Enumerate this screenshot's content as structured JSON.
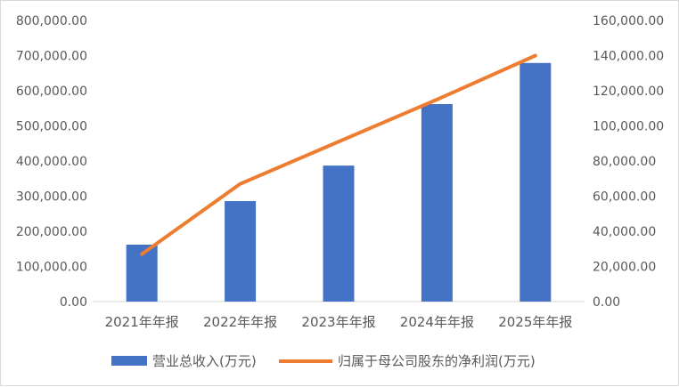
{
  "chart_data": {
    "type": "bar+line",
    "categories": [
      "2021年年报",
      "2022年年报",
      "2023年年报",
      "2024年年报",
      "2025年年报"
    ],
    "series": [
      {
        "name": "营业总收入(万元)",
        "type": "bar",
        "axis": "left",
        "color": "#4472C4",
        "values": [
          162000,
          286000,
          387000,
          562000,
          679000
        ]
      },
      {
        "name": "归属于母公司股东的净利润(万元)",
        "type": "line",
        "axis": "right",
        "color": "#ED7D31",
        "values": [
          27000,
          67000,
          91000,
          115000,
          140000
        ]
      }
    ],
    "y_left": {
      "min": 0,
      "max": 800000,
      "step": 100000,
      "ticks": [
        "0.00",
        "100,000.00",
        "200,000.00",
        "300,000.00",
        "400,000.00",
        "500,000.00",
        "600,000.00",
        "700,000.00",
        "800,000.00"
      ]
    },
    "y_right": {
      "min": 0,
      "max": 160000,
      "step": 20000,
      "ticks": [
        "0.00",
        "20,000.00",
        "40,000.00",
        "60,000.00",
        "80,000.00",
        "100,000.00",
        "120,000.00",
        "140,000.00",
        "160,000.00"
      ]
    },
    "grid": false,
    "legend_position": "bottom"
  }
}
